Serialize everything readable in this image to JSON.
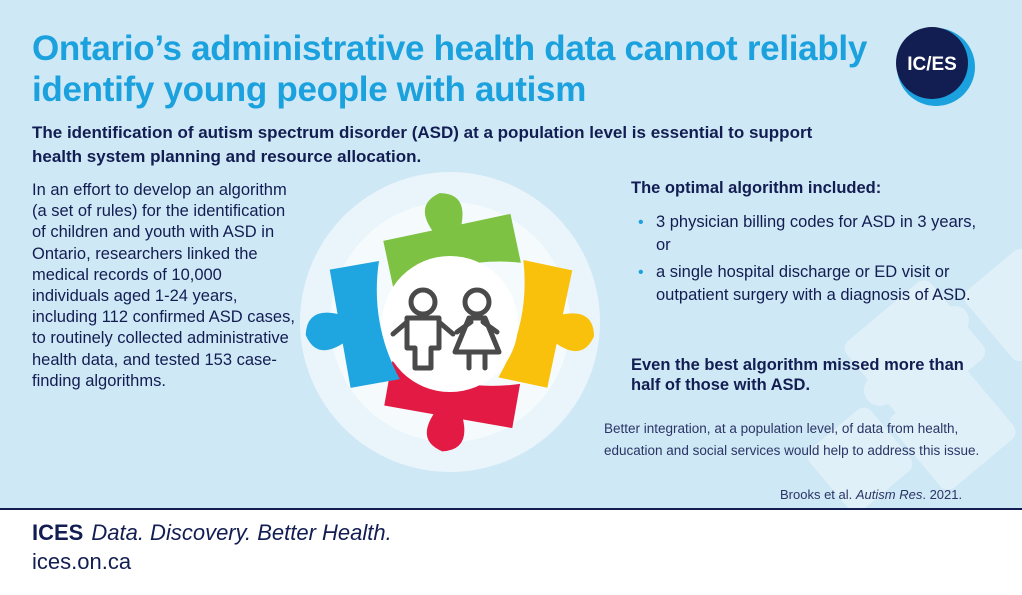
{
  "title": "Ontario’s administrative health data cannot reliably identify young people with autism",
  "logo": {
    "text": "IC/ES"
  },
  "subtitle": "The identification of autism spectrum disorder (ASD) at a population level is essential to support health system planning and resource allocation.",
  "body_text": "In an effort to develop an algorithm (a set of rules) for the identification of children and youth with ASD in Ontario, researchers linked the medical records of 10,000 individuals aged 1-24 years, including 112 confirmed ASD cases, to routinely collected administrative health data, and tested 153 case-finding algorithms.",
  "optimal": {
    "heading": "The optimal algorithm included:",
    "bullets": [
      {
        "marker": "•",
        "text": "3 physician billing codes for ASD in 3 years, or"
      },
      {
        "marker": "•",
        "text": "a single hospital discharge or ED visit or outpatient surgery with a diagnosis of ASD."
      }
    ]
  },
  "emphasis": "Even the best algorithm missed more than half of those with ASD.",
  "note": "Better integration, at a population level, of data from health, education and social services would help to address this issue.",
  "citation": {
    "authors": "Brooks et al. ",
    "journal": "Autism Res",
    "year": ". 2021."
  },
  "footer": {
    "brand": "ICES",
    "tagline": "Data. Discovery. Better Health.",
    "url": "ices.on.ca"
  },
  "colors": {
    "title": "#1aa1de",
    "navy": "#121d52",
    "panel": "#cfe8f5",
    "puzzle_green": "#7dc242",
    "puzzle_yellow": "#f9c00c",
    "puzzle_red": "#e31b44",
    "puzzle_blue": "#1fa5e0"
  },
  "icons": [
    "puzzle-graphic",
    "boy-icon",
    "girl-icon",
    "ices-logo"
  ]
}
